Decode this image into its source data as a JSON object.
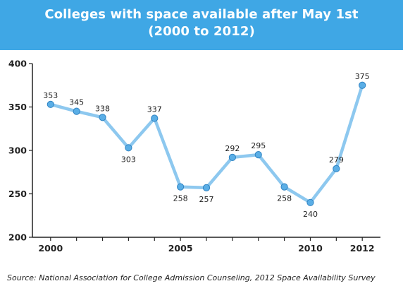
{
  "chart_data": {
    "type": "line",
    "title": "Colleges with space available after May 1st",
    "subtitle": "(2000 to 2012)",
    "xlabel": "",
    "ylabel": "",
    "x": [
      2000,
      2001,
      2002,
      2003,
      2004,
      2005,
      2006,
      2007,
      2008,
      2009,
      2010,
      2011,
      2012
    ],
    "values": [
      353,
      345,
      338,
      303,
      337,
      258,
      257,
      292,
      295,
      258,
      240,
      279,
      375
    ],
    "xticks": [
      "2000",
      "2005",
      "2010",
      "2012"
    ],
    "yticks": [
      "200",
      "250",
      "300",
      "350",
      "400"
    ],
    "ylim": [
      200,
      400
    ],
    "xlim": [
      1999.3,
      2012.7
    ],
    "grid": false,
    "legend": "none",
    "line_color": "#8dc8ef",
    "marker_color": "#5aaee6",
    "banner_color": "#3fa7e5"
  },
  "source": "Source: National Association for College Admission Counseling, 2012 Space Availability Survey"
}
